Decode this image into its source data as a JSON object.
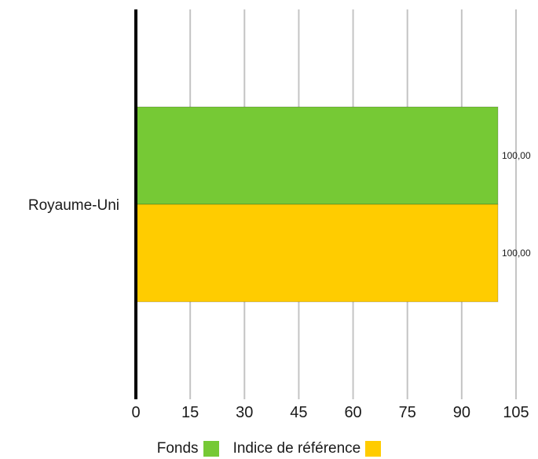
{
  "chart_data": {
    "type": "bar",
    "orientation": "horizontal",
    "categories": [
      "Royaume-Uni"
    ],
    "series": [
      {
        "name": "Fonds",
        "values": [
          100.0
        ],
        "labels": [
          "100,00"
        ],
        "color": "#76C935"
      },
      {
        "name": "Indice de référence",
        "values": [
          100.0
        ],
        "labels": [
          "100,00"
        ],
        "color": "#FFCC00"
      }
    ],
    "xlim": [
      0,
      105
    ],
    "xticks": [
      "0",
      "15",
      "30",
      "45",
      "60",
      "75",
      "90",
      "105"
    ],
    "grid": true,
    "legend_position": "bottom",
    "title": "",
    "xlabel": "",
    "ylabel": ""
  }
}
